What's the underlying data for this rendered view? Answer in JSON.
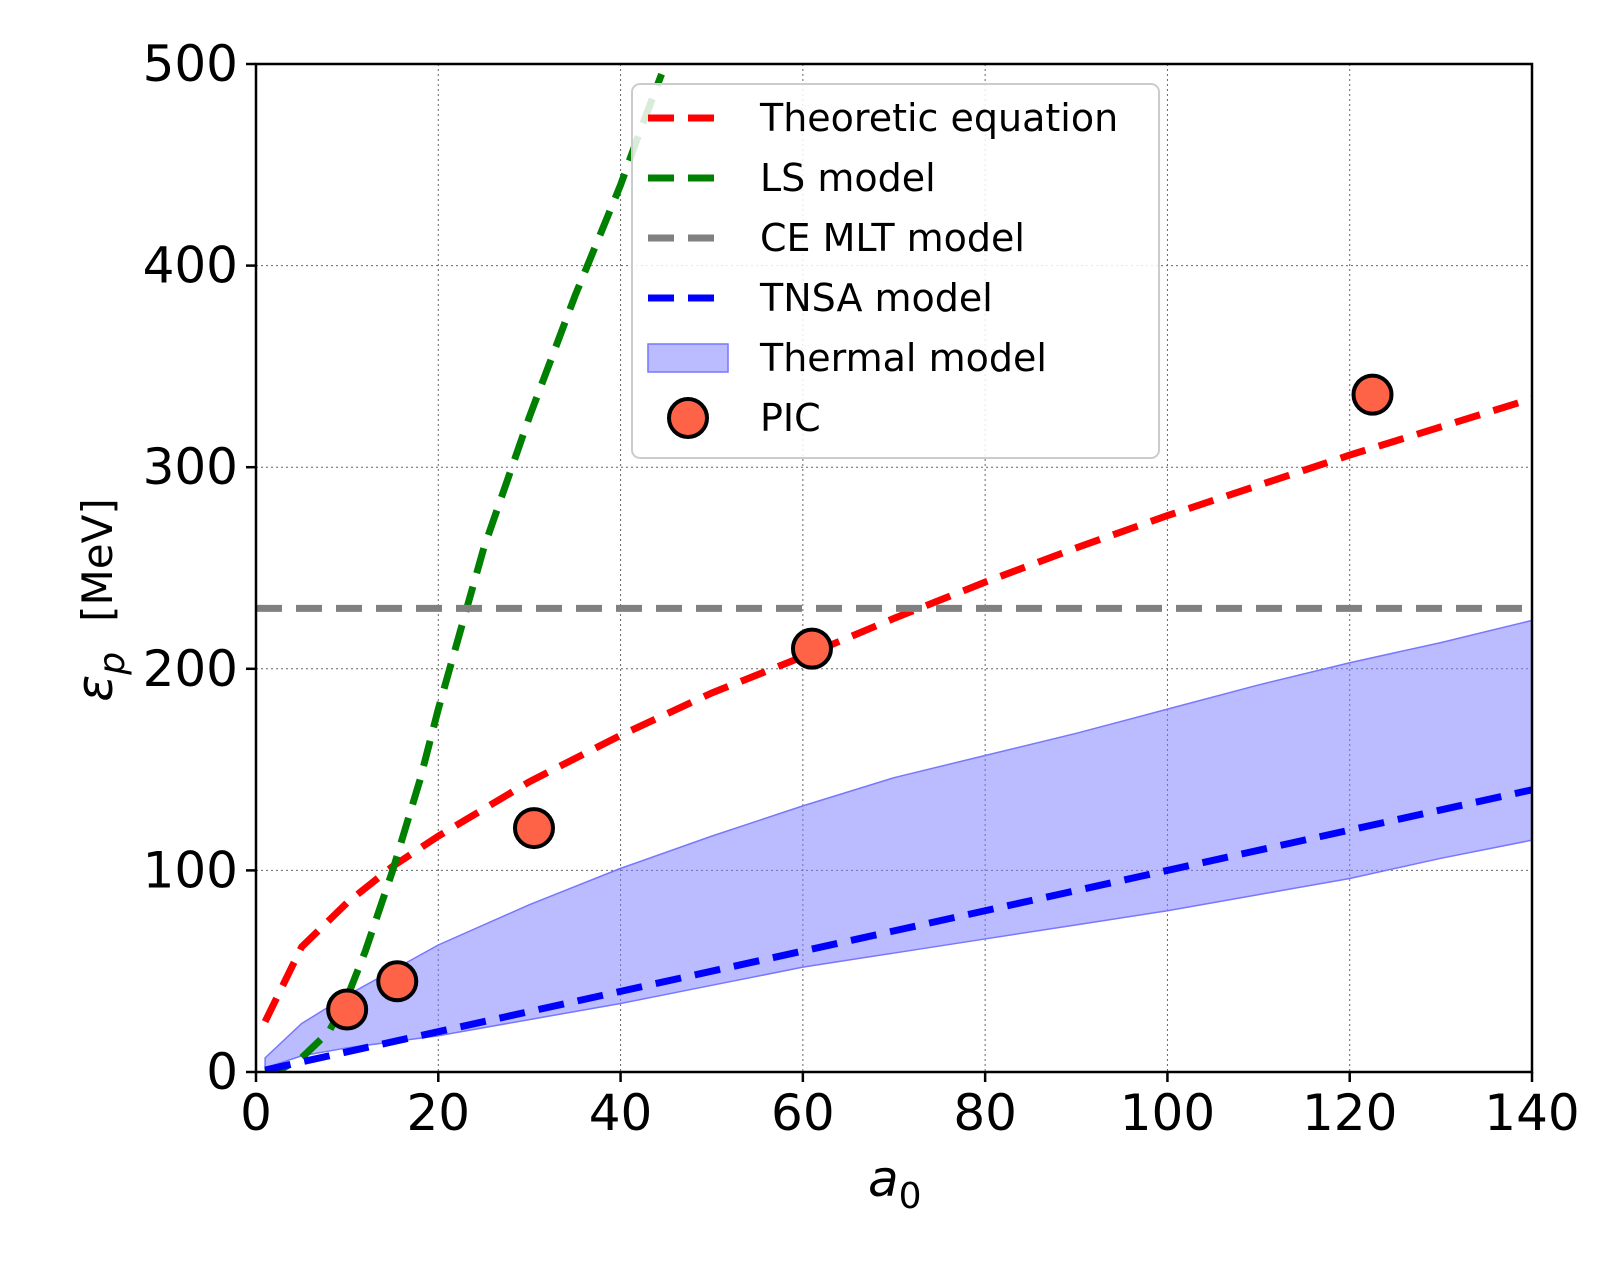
{
  "chart_data": {
    "type": "line",
    "title": "",
    "xlabel": "a",
    "xlabel_sub": "0",
    "ylabel_symbol": "ε",
    "ylabel_sub": "p",
    "ylabel_unit": "[MeV]",
    "xlim": [
      0,
      140
    ],
    "ylim": [
      0,
      500
    ],
    "x_ticks": [
      0,
      20,
      40,
      60,
      80,
      100,
      120,
      140
    ],
    "y_ticks": [
      0,
      100,
      200,
      300,
      400,
      500
    ],
    "grid": true,
    "legend_position": "top-center",
    "series": [
      {
        "name": "Theoretic equation",
        "kind": "dashed-line",
        "color": "#ff0000",
        "x": [
          1,
          5,
          10,
          15,
          20,
          30,
          40,
          50,
          60,
          70,
          80,
          90,
          100,
          110,
          120,
          130,
          140
        ],
        "y": [
          25,
          62,
          84,
          102,
          117,
          144,
          167,
          188,
          206,
          225,
          243,
          260,
          276,
          291,
          306,
          320,
          334
        ]
      },
      {
        "name": "LS model",
        "kind": "dashed-line",
        "color": "#008000",
        "x": [
          1,
          3,
          5,
          8,
          10,
          12,
          15,
          18,
          20,
          25,
          30,
          35,
          40,
          42,
          44.5
        ],
        "y": [
          0,
          2,
          7,
          20,
          37,
          60,
          100,
          145,
          180,
          260,
          325,
          385,
          440,
          465,
          495
        ]
      },
      {
        "name": "CE MLT model",
        "kind": "dashed-line",
        "color": "#808080",
        "x": [
          0,
          140
        ],
        "y": [
          230,
          230
        ]
      },
      {
        "name": "TNSA model",
        "kind": "dashed-line",
        "color": "#0000ff",
        "x": [
          1,
          140
        ],
        "y": [
          1,
          140
        ]
      },
      {
        "name": "Thermal model",
        "kind": "band",
        "color": "#7777ff",
        "x": [
          1,
          5,
          10,
          20,
          30,
          40,
          50,
          60,
          70,
          80,
          90,
          100,
          110,
          120,
          130,
          140
        ],
        "y_upper": [
          7,
          24,
          38,
          63,
          83,
          101,
          117,
          132,
          146,
          157,
          168,
          180,
          192,
          203,
          213,
          224
        ],
        "y_lower": [
          2,
          8,
          12,
          18,
          26,
          34,
          43,
          52,
          59,
          66,
          73,
          80,
          88,
          96,
          106,
          115
        ]
      },
      {
        "name": "PIC",
        "kind": "markers",
        "color": "#ff6347",
        "x": [
          10,
          15.5,
          30.5,
          61,
          122.5
        ],
        "y": [
          31,
          45,
          121,
          210,
          336
        ]
      }
    ]
  }
}
